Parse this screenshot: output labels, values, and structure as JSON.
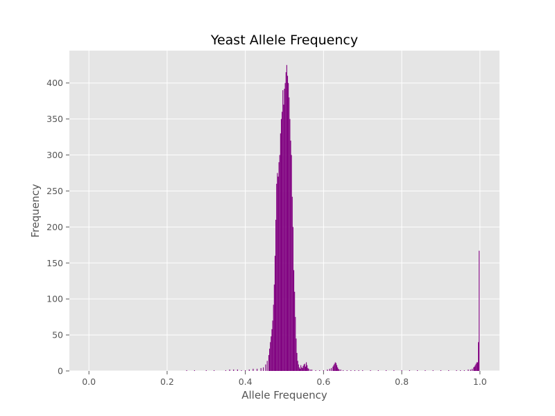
{
  "chart_data": {
    "type": "histogram",
    "title": "Yeast Allele Frequency",
    "xlabel": "Allele Frequency",
    "ylabel": "Frequency",
    "xlim": [
      -0.05,
      1.05
    ],
    "ylim": [
      0,
      445
    ],
    "xticks": [
      0.0,
      0.2,
      0.4,
      0.6,
      0.8,
      1.0
    ],
    "xtick_labels": [
      "0.0",
      "0.2",
      "0.4",
      "0.6",
      "0.8",
      "1.0"
    ],
    "yticks": [
      0,
      50,
      100,
      150,
      200,
      250,
      300,
      350,
      400
    ],
    "ytick_labels": [
      "0",
      "50",
      "100",
      "150",
      "200",
      "250",
      "300",
      "350",
      "400"
    ],
    "bar_color": "#800080",
    "bin_width": 0.002,
    "grid": true,
    "background_color": "#e5e5e5",
    "bins_x": [
      0.25,
      0.27,
      0.3,
      0.32,
      0.35,
      0.36,
      0.37,
      0.38,
      0.39,
      0.4,
      0.41,
      0.42,
      0.43,
      0.44,
      0.446,
      0.452,
      0.456,
      0.46,
      0.462,
      0.464,
      0.466,
      0.468,
      0.47,
      0.472,
      0.474,
      0.476,
      0.478,
      0.48,
      0.482,
      0.484,
      0.486,
      0.488,
      0.49,
      0.492,
      0.494,
      0.496,
      0.498,
      0.5,
      0.502,
      0.504,
      0.506,
      0.508,
      0.51,
      0.512,
      0.514,
      0.516,
      0.518,
      0.52,
      0.522,
      0.524,
      0.526,
      0.528,
      0.53,
      0.532,
      0.534,
      0.536,
      0.538,
      0.54,
      0.542,
      0.544,
      0.546,
      0.548,
      0.55,
      0.552,
      0.554,
      0.556,
      0.558,
      0.56,
      0.562,
      0.566,
      0.57,
      0.58,
      0.59,
      0.6,
      0.61,
      0.616,
      0.62,
      0.624,
      0.626,
      0.628,
      0.63,
      0.632,
      0.634,
      0.636,
      0.638,
      0.64,
      0.644,
      0.65,
      0.66,
      0.67,
      0.68,
      0.69,
      0.7,
      0.72,
      0.74,
      0.76,
      0.78,
      0.8,
      0.82,
      0.84,
      0.86,
      0.88,
      0.9,
      0.92,
      0.94,
      0.95,
      0.96,
      0.97,
      0.976,
      0.98,
      0.984,
      0.986,
      0.988,
      0.99,
      0.992,
      0.994,
      0.996,
      0.998
    ],
    "bins_y": [
      1,
      1,
      1,
      1,
      1,
      2,
      2,
      2,
      1,
      1,
      2,
      3,
      3,
      4,
      5,
      9,
      14,
      22,
      31,
      40,
      48,
      58,
      70,
      92,
      120,
      160,
      210,
      260,
      275,
      270,
      290,
      300,
      330,
      350,
      360,
      390,
      370,
      392,
      400,
      415,
      425,
      410,
      400,
      380,
      350,
      320,
      300,
      242,
      200,
      140,
      110,
      75,
      45,
      25,
      14,
      9,
      5,
      3,
      8,
      5,
      4,
      7,
      9,
      10,
      6,
      12,
      8,
      4,
      3,
      2,
      2,
      1,
      1,
      1,
      2,
      3,
      4,
      6,
      8,
      10,
      12,
      11,
      8,
      5,
      3,
      2,
      2,
      1,
      1,
      1,
      1,
      1,
      1,
      1,
      1,
      1,
      1,
      1,
      1,
      1,
      1,
      1,
      1,
      1,
      1,
      1,
      1,
      2,
      2,
      3,
      5,
      6,
      8,
      10,
      12,
      12,
      40,
      167
    ]
  }
}
